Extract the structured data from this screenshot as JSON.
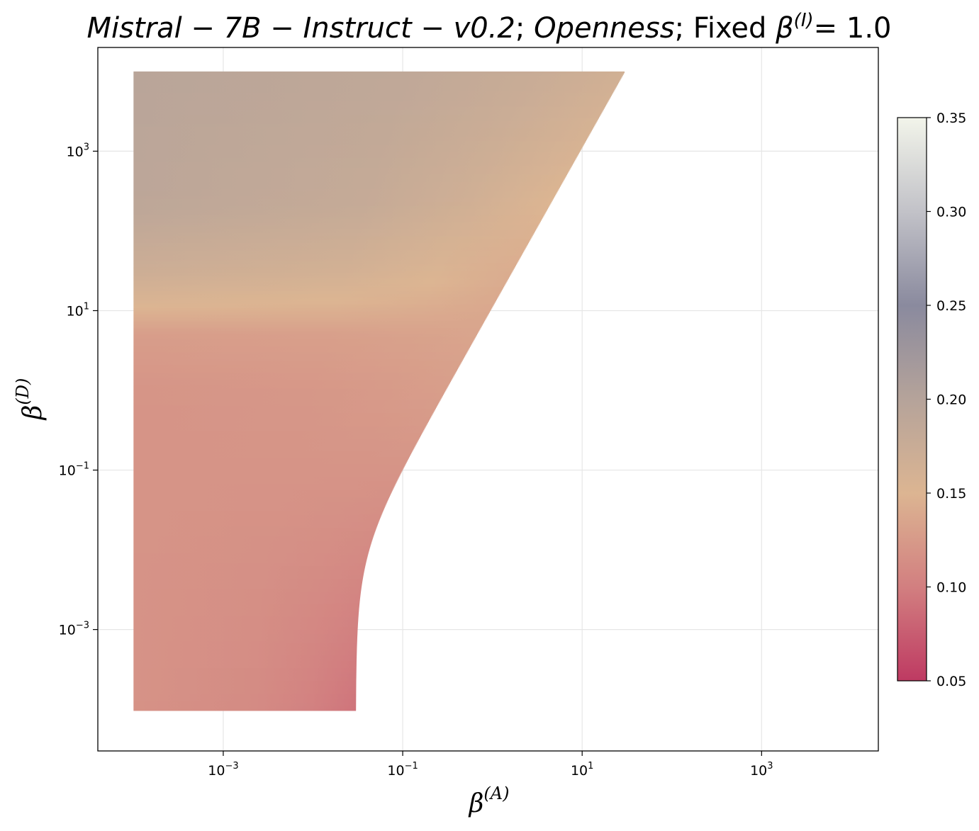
{
  "chart_data": {
    "type": "heatmap",
    "title": {
      "model": "Mistral − 7B − Instruct − v0.2",
      "trait": "Openness",
      "fixed_prefix": "Fixed ",
      "fixed_symbol": "β",
      "fixed_sup": "(I)",
      "fixed_value": "= 1.0"
    },
    "xlabel": {
      "symbol": "β",
      "sup": "(A)"
    },
    "ylabel": {
      "symbol": "β",
      "sup": "(D)"
    },
    "x_scale": "log",
    "y_scale": "log",
    "xlim": [
      4e-05,
      20000
    ],
    "ylim": [
      3e-05,
      20000
    ],
    "x_ticks": [
      {
        "value": 0.001,
        "base": "10",
        "exp": "−3"
      },
      {
        "value": 0.1,
        "base": "10",
        "exp": "−1"
      },
      {
        "value": 10,
        "base": "10",
        "exp": "1"
      },
      {
        "value": 1000,
        "base": "10",
        "exp": "3"
      }
    ],
    "y_ticks": [
      {
        "value": 0.001,
        "base": "10",
        "exp": "−3"
      },
      {
        "value": 0.1,
        "base": "10",
        "exp": "−1"
      },
      {
        "value": 10,
        "base": "10",
        "exp": "1"
      },
      {
        "value": 1000,
        "base": "10",
        "exp": "3"
      }
    ],
    "grid": true,
    "region": {
      "x_min": 0.0001,
      "y_min": 0.0001,
      "y_max": 10000,
      "boundary_x_at_low_y": 0.03,
      "boundary_x_at_y_max": 30
    },
    "colorbar": {
      "vmin": 0.05,
      "vmax": 0.35,
      "ticks": [
        "0.05",
        "0.10",
        "0.15",
        "0.20",
        "0.25",
        "0.30",
        "0.35"
      ],
      "tick_values": [
        0.05,
        0.1,
        0.15,
        0.2,
        0.25,
        0.3,
        0.35
      ],
      "colors": [
        {
          "value": 0.05,
          "color": "#be3a62"
        },
        {
          "value": 0.1,
          "color": "#d27f80"
        },
        {
          "value": 0.15,
          "color": "#dcb592"
        },
        {
          "value": 0.2,
          "color": "#b5a39a"
        },
        {
          "value": 0.25,
          "color": "#8a8a9e"
        },
        {
          "value": 0.3,
          "color": "#c2c2c8"
        },
        {
          "value": 0.35,
          "color": "#f2f4ea"
        }
      ]
    },
    "value_profile": {
      "y": [
        0.0001,
        1,
        5,
        12,
        30,
        200,
        10000
      ],
      "v": [
        0.118,
        0.12,
        0.128,
        0.152,
        0.17,
        0.19,
        0.195
      ]
    },
    "edge_effect": {
      "low_y_edge_value": 0.092,
      "high_y_edge_value": 0.165
    }
  }
}
